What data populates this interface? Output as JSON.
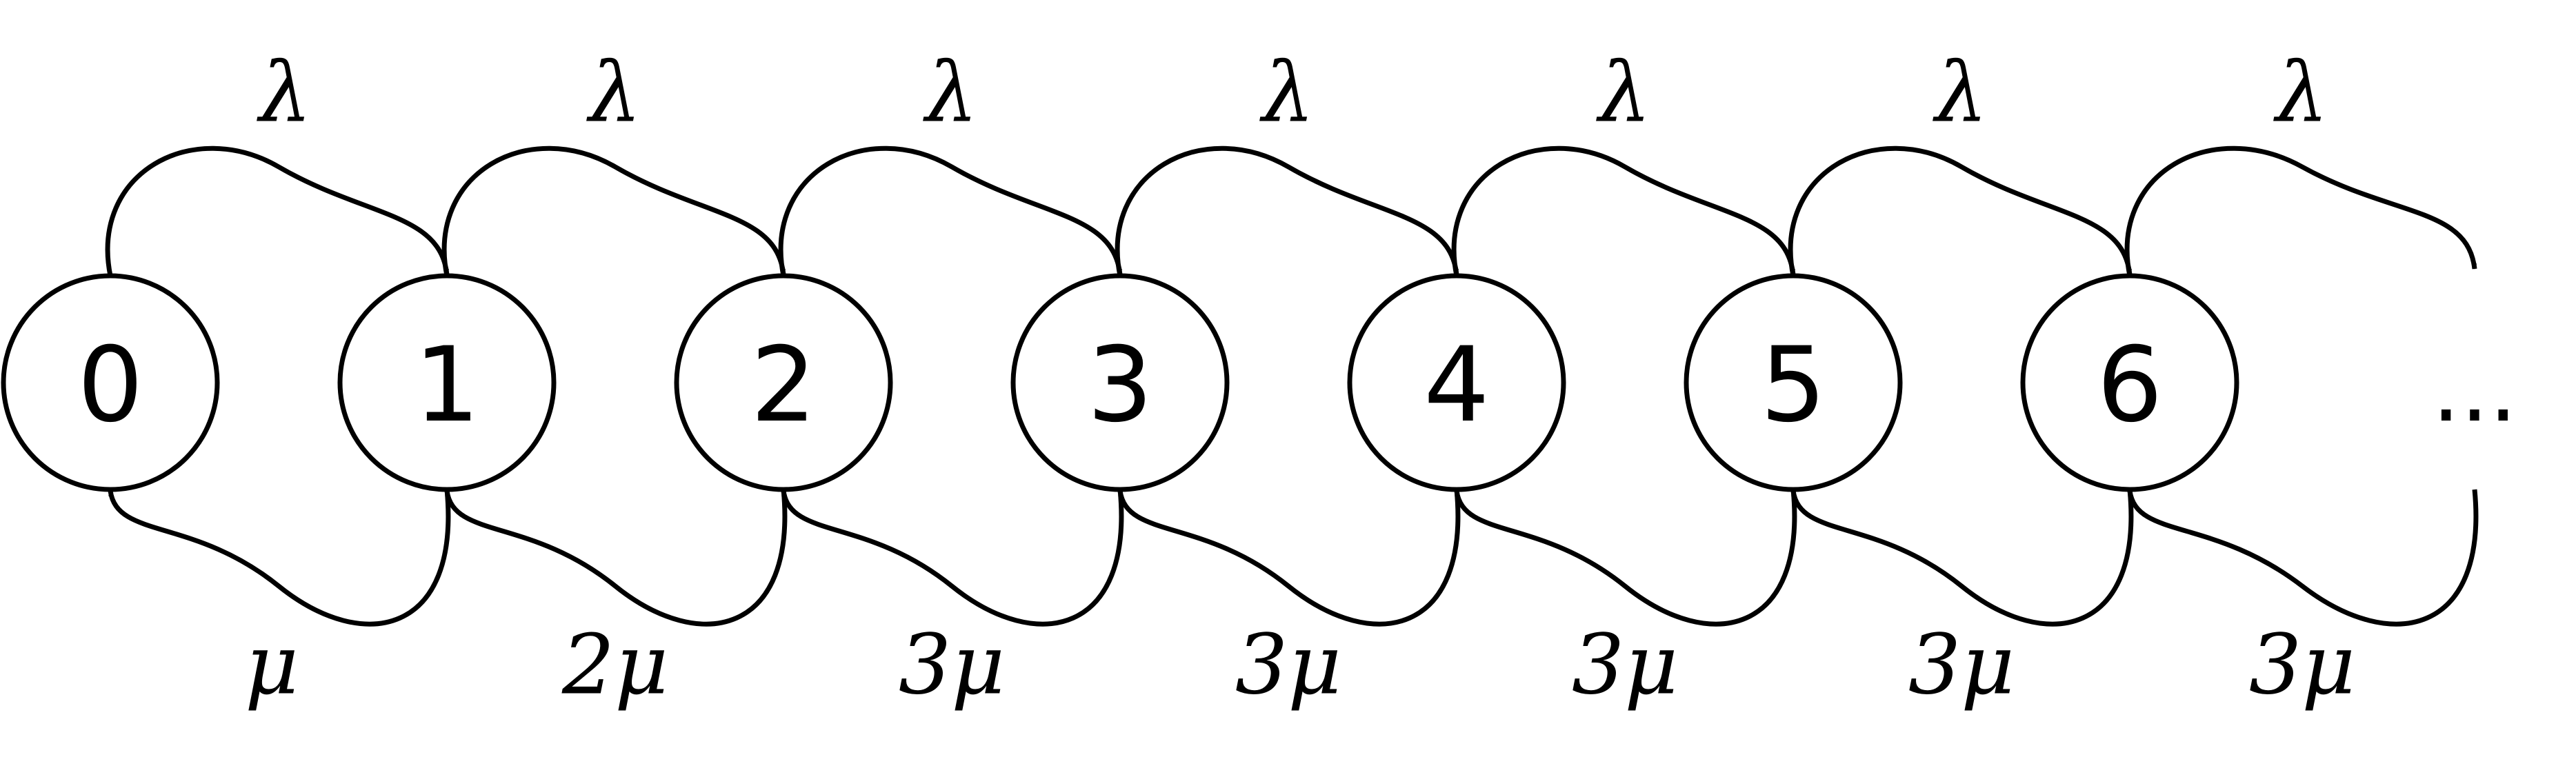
{
  "diagram": {
    "type": "birth-death-chain",
    "states": [
      "0",
      "1",
      "2",
      "3",
      "4",
      "5",
      "6"
    ],
    "continuation": "...",
    "forward_rates": [
      "λ",
      "λ",
      "λ",
      "λ",
      "λ",
      "λ",
      "λ"
    ],
    "backward_rates": [
      "μ",
      "2μ",
      "3μ",
      "3μ",
      "3μ",
      "3μ",
      "3μ"
    ],
    "colors": {
      "stroke": "#000000",
      "background": "#ffffff"
    }
  }
}
